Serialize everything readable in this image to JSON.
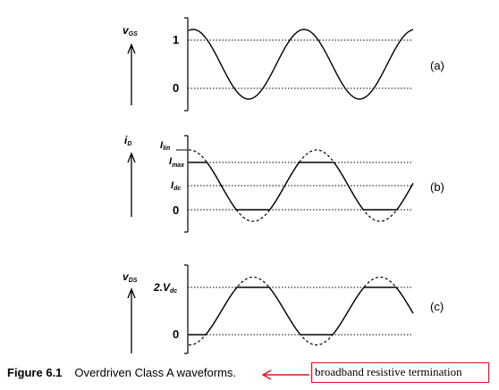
{
  "panels": [
    {
      "id": "a",
      "tag": "(a)",
      "var_main": "v",
      "var_sub": "GS",
      "levels": [
        {
          "main": "1",
          "sub": ""
        },
        {
          "main": "0",
          "sub": ""
        }
      ],
      "waveform": "sine",
      "clipped": false
    },
    {
      "id": "b",
      "tag": "(b)",
      "var_main": "i",
      "var_sub": "D",
      "levels": [
        {
          "main": "I",
          "sub": "lin"
        },
        {
          "main": "I",
          "sub": "max"
        },
        {
          "main": "I",
          "sub": "dc"
        },
        {
          "main": "0",
          "sub": ""
        }
      ],
      "waveform": "clipped-sine",
      "clipped": true
    },
    {
      "id": "c",
      "tag": "(c)",
      "var_main": "v",
      "var_sub": "DS",
      "levels": [
        {
          "main": "2.V",
          "sub": "dc"
        },
        {
          "main": "0",
          "sub": ""
        }
      ],
      "waveform": "clipped-sine",
      "clipped": true
    }
  ],
  "caption": {
    "figure_label": "Figure 6.1",
    "text": "Overdriven Class A waveforms."
  },
  "annotation": {
    "text": "broadband resistive termination",
    "color": "#e0141e"
  }
}
